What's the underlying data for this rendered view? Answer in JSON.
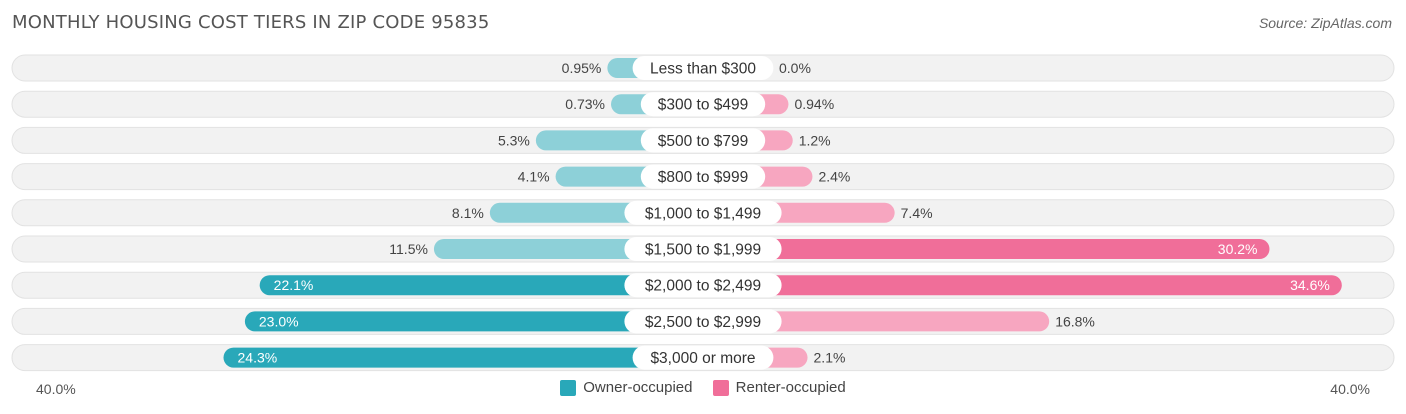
{
  "title": "MONTHLY HOUSING COST TIERS IN ZIP CODE 95835",
  "source": "Source: ZipAtlas.com",
  "colors": {
    "owner_light": "#8dd0d8",
    "owner_dark": "#29a8b9",
    "renter_light": "#f7a6c0",
    "renter_dark": "#f06e99",
    "row_bg": "#efefef"
  },
  "chart_data": {
    "type": "bar",
    "orientation": "horizontal-diverging",
    "categories": [
      "Less than $300",
      "$300 to $499",
      "$500 to $799",
      "$800 to $999",
      "$1,000 to $1,499",
      "$1,500 to $1,999",
      "$2,000 to $2,499",
      "$2,500 to $2,999",
      "$3,000 or more"
    ],
    "series": [
      {
        "name": "Owner-occupied",
        "values": [
          0.95,
          0.73,
          5.3,
          4.1,
          8.1,
          11.5,
          22.1,
          23.0,
          24.3
        ],
        "labels": [
          "0.95%",
          "0.73%",
          "5.3%",
          "4.1%",
          "8.1%",
          "11.5%",
          "22.1%",
          "23.0%",
          "24.3%"
        ]
      },
      {
        "name": "Renter-occupied",
        "values": [
          0.0,
          0.94,
          1.2,
          2.4,
          7.4,
          30.2,
          34.6,
          16.8,
          2.1
        ],
        "labels": [
          "0.0%",
          "0.94%",
          "1.2%",
          "2.4%",
          "7.4%",
          "30.2%",
          "34.6%",
          "16.8%",
          "2.1%"
        ]
      }
    ],
    "xlim": [
      -40,
      40
    ],
    "axis_left_label": "40.0%",
    "axis_right_label": "40.0%",
    "legend_position": "bottom-center"
  }
}
